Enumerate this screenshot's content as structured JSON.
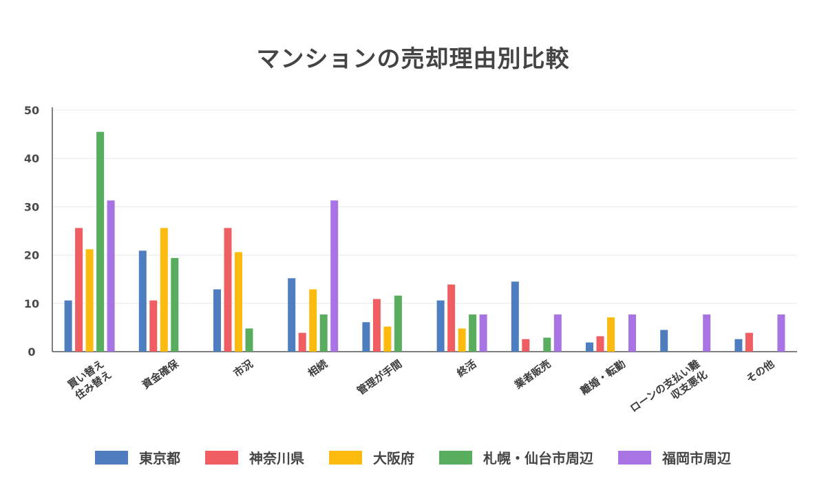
{
  "chart_data": {
    "type": "bar",
    "title": "マンションの売却理由別比較",
    "categories": [
      "買い替え\n住み替え",
      "資金確保",
      "市況",
      "相続",
      "管理が手間",
      "終活",
      "業者販売",
      "離婚・転勤",
      "ローンの支払い難\n収支悪化",
      "その他"
    ],
    "series": [
      {
        "name": "東京都",
        "color": "#4e7ebf",
        "values": [
          10.6,
          20.9,
          12.9,
          15.2,
          6.1,
          10.6,
          14.5,
          1.9,
          4.5,
          2.6
        ]
      },
      {
        "name": "神奈川県",
        "color": "#ee5e62",
        "values": [
          25.6,
          10.6,
          25.6,
          3.9,
          10.9,
          13.9,
          2.6,
          3.2,
          0,
          3.9
        ]
      },
      {
        "name": "大阪府",
        "color": "#fdbb0f",
        "values": [
          21.2,
          25.6,
          20.6,
          12.9,
          5.2,
          4.8,
          0,
          7.1,
          0,
          0
        ]
      },
      {
        "name": "札幌・仙台市周辺",
        "color": "#58ad5e",
        "values": [
          45.5,
          19.4,
          4.8,
          7.7,
          11.6,
          7.7,
          2.9,
          0,
          0,
          0
        ]
      },
      {
        "name": "福岡市周辺",
        "color": "#a874e3",
        "values": [
          31.3,
          0,
          0,
          31.3,
          0,
          7.7,
          7.7,
          7.7,
          7.7,
          7.7
        ]
      }
    ],
    "yticks": [
      0,
      10,
      20,
      30,
      40,
      50
    ],
    "ylim": [
      0,
      50
    ],
    "grid": true,
    "legend_position": "bottom"
  }
}
